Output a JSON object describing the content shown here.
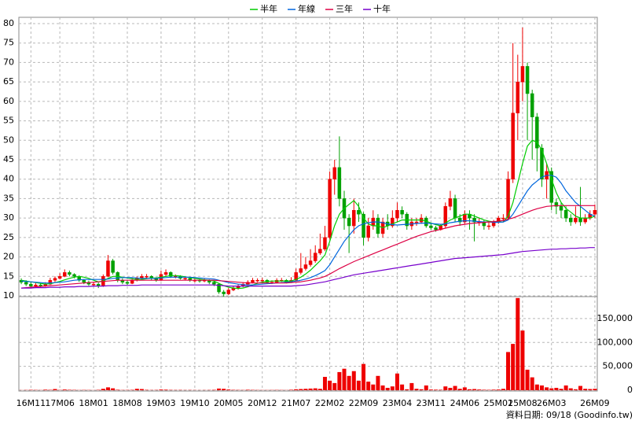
{
  "chart_data": {
    "type": "candlestick",
    "categories": [
      null,
      null,
      "16M11",
      null,
      null,
      null,
      null,
      null,
      "17M06",
      null,
      null,
      null,
      null,
      null,
      null,
      "18M01",
      null,
      null,
      null,
      null,
      null,
      null,
      "18M08",
      null,
      null,
      null,
      null,
      null,
      null,
      "19M03",
      null,
      null,
      null,
      null,
      null,
      null,
      "19M10",
      null,
      null,
      null,
      null,
      null,
      null,
      "20M05",
      null,
      null,
      null,
      null,
      null,
      null,
      "20M12",
      null,
      null,
      null,
      null,
      null,
      null,
      "21M07",
      null,
      null,
      null,
      null,
      null,
      null,
      "22M02",
      null,
      null,
      null,
      null,
      null,
      null,
      "22M09",
      null,
      null,
      null,
      null,
      null,
      null,
      "23M04",
      null,
      null,
      null,
      null,
      null,
      null,
      "23M11",
      null,
      null,
      null,
      null,
      null,
      null,
      "24M06",
      null,
      null,
      null,
      null,
      null,
      null,
      "25M01",
      null,
      null,
      null,
      null,
      "25M08",
      null,
      null,
      null,
      null,
      null,
      "26M03",
      null,
      null,
      null,
      null,
      null,
      null,
      null,
      null,
      "26M09"
    ],
    "open": [
      14,
      13.5,
      13,
      12.5,
      12.8,
      12.6,
      13,
      14,
      14.5,
      15,
      16,
      15.5,
      15,
      14,
      13.5,
      13,
      13,
      12.5,
      15,
      19,
      16,
      14,
      13.5,
      13.2,
      14,
      14.5,
      15,
      15,
      14.5,
      14,
      15.5,
      16,
      15,
      15,
      14.5,
      14.5,
      14,
      14,
      13.8,
      14,
      13.5,
      13,
      11,
      10.5,
      11.5,
      12,
      12.5,
      13,
      13.5,
      14,
      14,
      14,
      13.5,
      13.5,
      14,
      14,
      13.5,
      14,
      16,
      17,
      18,
      19,
      21,
      22,
      25,
      40,
      43,
      35,
      30,
      28,
      32,
      31,
      25,
      28,
      30,
      26,
      29,
      28,
      30,
      32,
      31,
      28,
      29,
      29,
      30,
      28,
      27.5,
      27,
      28,
      33,
      35,
      30,
      29,
      31,
      30,
      29,
      29,
      28,
      28,
      29,
      30,
      30,
      40,
      57,
      65,
      69,
      62,
      56,
      48,
      40,
      42,
      34,
      33,
      32,
      30,
      29,
      30,
      29,
      30,
      31
    ],
    "high": [
      14.5,
      14,
      13.5,
      13.3,
      13.2,
      13.5,
      14.6,
      15,
      15.8,
      16.8,
      16.5,
      15.8,
      15.3,
      14.3,
      13.9,
      13.5,
      13.4,
      15.5,
      20.5,
      19.5,
      16.3,
      14.5,
      14,
      14.6,
      15,
      15.6,
      15.6,
      15.3,
      14.8,
      16.5,
      16.8,
      16.3,
      15.5,
      15.3,
      15,
      14.8,
      14.5,
      14.3,
      14.5,
      14.2,
      13.8,
      13.3,
      11.5,
      12,
      12.5,
      13,
      13.5,
      14,
      14.6,
      14.5,
      14.6,
      14.3,
      14,
      14.5,
      14.6,
      14.3,
      14.8,
      17,
      21,
      20,
      22,
      23,
      26,
      28,
      42,
      45,
      51,
      37,
      31,
      35,
      34,
      31.5,
      30,
      32,
      31,
      30,
      31,
      32,
      34,
      33,
      31.5,
      30,
      30,
      31,
      30.5,
      28.5,
      28,
      28.5,
      34,
      37,
      36,
      31,
      32,
      32,
      31,
      30,
      29.5,
      29,
      29.5,
      30.5,
      31,
      42,
      75,
      72,
      79,
      70,
      63,
      57,
      49,
      44,
      43,
      35,
      34,
      33,
      31,
      33,
      38,
      31,
      32,
      33.5
    ],
    "low": [
      13,
      12.5,
      12,
      12,
      12.2,
      12.3,
      12.8,
      13.6,
      14.2,
      14.8,
      15,
      14.5,
      13.6,
      13,
      12.6,
      12.4,
      12,
      12.3,
      14.8,
      15.5,
      13.5,
      13,
      12.8,
      13,
      13.7,
      14.2,
      14.5,
      14,
      13.6,
      13.8,
      15,
      14.6,
      14.5,
      14.2,
      14,
      13.6,
      13.5,
      13.4,
      13.5,
      13,
      12.5,
      10.5,
      9.8,
      10.2,
      11.2,
      11.6,
      12.2,
      12.7,
      13.2,
      13.5,
      13.5,
      13.2,
      13,
      13.2,
      13.6,
      13.2,
      13.3,
      13.8,
      15.5,
      16.5,
      17.5,
      18.5,
      20.5,
      21.5,
      24.5,
      36,
      33,
      27,
      21,
      26,
      29,
      23,
      24,
      27,
      25,
      25,
      27,
      27.5,
      29,
      30,
      27,
      27,
      28,
      28.5,
      27.5,
      27,
      26.5,
      26.8,
      27.5,
      32,
      29,
      28,
      28.5,
      27,
      24,
      28,
      27,
      27,
      27.5,
      28.5,
      29,
      29.5,
      39,
      50,
      60,
      50,
      45,
      42,
      38,
      35,
      32,
      31,
      30,
      29,
      28,
      28.5,
      28,
      28.5,
      29.5,
      30
    ],
    "close": [
      13.5,
      13,
      12.5,
      12.8,
      12.6,
      13,
      14,
      14.5,
      15,
      16,
      15.5,
      15,
      14,
      13.5,
      13,
      13,
      12.5,
      15,
      19,
      16,
      14,
      13.5,
      13.2,
      14,
      14.5,
      15,
      15,
      14.5,
      14,
      15.5,
      16,
      15,
      15,
      14.5,
      14.5,
      14,
      14,
      13.8,
      14,
      13.5,
      13,
      11,
      10.5,
      11.5,
      12,
      12.5,
      13,
      13.5,
      14,
      14,
      14,
      13.5,
      13.5,
      14,
      14,
      13.5,
      14,
      16,
      17,
      18,
      19,
      21,
      22,
      25,
      40,
      43,
      35,
      30,
      28,
      32,
      31,
      25,
      28,
      30,
      26,
      29,
      28,
      30,
      32,
      31,
      28,
      29,
      29,
      30,
      28,
      27.5,
      27,
      28,
      33,
      35,
      30,
      29,
      31,
      30,
      29,
      29,
      28,
      28,
      29,
      30,
      30,
      40,
      57,
      65,
      69,
      62,
      56,
      48,
      40,
      42,
      34,
      33,
      32,
      30,
      29,
      30,
      29,
      30,
      31,
      32
    ],
    "up_color": "#ee0000",
    "down_color": "#00a000",
    "ylim": [
      10,
      80
    ],
    "yticks": [
      10,
      15,
      20,
      25,
      30,
      35,
      40,
      45,
      50,
      55,
      60,
      65,
      70,
      75,
      80
    ],
    "grid": true,
    "series": [
      {
        "name": "半年",
        "color": "#00cc00",
        "values": [
          14.0,
          13.8,
          13.6,
          13.4,
          13.2,
          13.0,
          13.1,
          13.4,
          13.7,
          14.1,
          14.5,
          14.8,
          15.0,
          14.8,
          14.5,
          14.0,
          13.6,
          13.8,
          14.5,
          15.0,
          15.0,
          14.8,
          14.6,
          14.4,
          14.2,
          14.2,
          14.4,
          14.6,
          14.6,
          14.8,
          15.0,
          15.2,
          15.2,
          15.1,
          14.9,
          14.7,
          14.5,
          14.3,
          14.1,
          14.0,
          13.8,
          13.2,
          12.6,
          12.2,
          12.0,
          11.9,
          12.0,
          12.3,
          12.8,
          13.2,
          13.5,
          13.7,
          13.8,
          13.8,
          13.8,
          13.8,
          13.8,
          14.2,
          14.8,
          15.6,
          16.6,
          17.8,
          19.0,
          20.5,
          24.0,
          28.0,
          31.0,
          32.5,
          33.5,
          34.5,
          33.0,
          30.0,
          28.5,
          28.0,
          28.0,
          27.5,
          28.0,
          28.5,
          29.0,
          29.5,
          29.5,
          29.5,
          29.5,
          29.5,
          29.2,
          28.7,
          28.3,
          28.0,
          28.7,
          29.5,
          30.0,
          30.5,
          31.0,
          31.0,
          30.5,
          30.0,
          29.5,
          29.2,
          29.0,
          29.0,
          29.0,
          30.5,
          34.0,
          39.0,
          44.0,
          48.5,
          50.0,
          49.5,
          47.5,
          44.0,
          40.0,
          36.5,
          34.0,
          32.5,
          31.5,
          30.5,
          30.0,
          30.0,
          30.0,
          30.5
        ]
      },
      {
        "name": "年線",
        "color": "#0066dd",
        "values": [
          13.8,
          13.7,
          13.6,
          13.5,
          13.4,
          13.3,
          13.3,
          13.4,
          13.5,
          13.6,
          13.8,
          14.0,
          14.1,
          14.2,
          14.2,
          14.2,
          14.2,
          14.2,
          14.3,
          14.5,
          14.6,
          14.7,
          14.7,
          14.7,
          14.6,
          14.5,
          14.5,
          14.5,
          14.5,
          14.6,
          14.7,
          14.8,
          14.8,
          14.8,
          14.8,
          14.8,
          14.7,
          14.6,
          14.5,
          14.4,
          14.3,
          14.0,
          13.7,
          13.4,
          13.2,
          13.0,
          12.9,
          12.8,
          12.8,
          12.9,
          13.0,
          13.1,
          13.2,
          13.3,
          13.4,
          13.5,
          13.6,
          13.8,
          14.0,
          14.3,
          14.7,
          15.2,
          15.8,
          16.5,
          18.0,
          20.0,
          22.0,
          24.0,
          25.5,
          27.0,
          28.0,
          28.5,
          28.8,
          29.0,
          29.0,
          28.8,
          28.5,
          28.3,
          28.2,
          28.3,
          28.4,
          28.5,
          28.6,
          28.7,
          28.7,
          28.6,
          28.5,
          28.4,
          28.5,
          28.8,
          29.0,
          29.2,
          29.3,
          29.3,
          29.2,
          29.1,
          29.0,
          29.0,
          28.9,
          28.9,
          29.0,
          29.5,
          31.0,
          33.0,
          35.0,
          37.0,
          38.5,
          39.5,
          40.5,
          41.0,
          41.0,
          40.5,
          39.0,
          37.0,
          35.5,
          34.0,
          33.0,
          32.0,
          31.0,
          30.5
        ]
      },
      {
        "name": "三年",
        "color": "#dd0044",
        "values": [
          12.0,
          12.1,
          12.2,
          12.3,
          12.4,
          12.5,
          12.6,
          12.7,
          12.8,
          12.9,
          13.0,
          13.1,
          13.2,
          13.3,
          13.4,
          13.5,
          13.6,
          13.7,
          13.8,
          13.9,
          14.0,
          14.0,
          14.0,
          14.0,
          14.0,
          14.0,
          14.0,
          14.0,
          14.0,
          14.0,
          14.0,
          14.0,
          14.0,
          14.0,
          14.0,
          14.0,
          14.0,
          14.0,
          14.0,
          14.0,
          14.0,
          13.9,
          13.8,
          13.7,
          13.6,
          13.5,
          13.4,
          13.3,
          13.3,
          13.3,
          13.3,
          13.3,
          13.3,
          13.3,
          13.3,
          13.3,
          13.4,
          13.5,
          13.6,
          13.8,
          14.0,
          14.3,
          14.6,
          15.0,
          15.6,
          16.3,
          17.0,
          17.6,
          18.2,
          18.8,
          19.3,
          19.8,
          20.3,
          20.8,
          21.3,
          21.8,
          22.3,
          22.8,
          23.3,
          23.8,
          24.3,
          24.8,
          25.3,
          25.7,
          26.1,
          26.5,
          26.8,
          27.1,
          27.4,
          27.7,
          28.0,
          28.2,
          28.4,
          28.6,
          28.7,
          28.8,
          28.9,
          29.0,
          29.1,
          29.2,
          29.4,
          29.7,
          30.0,
          30.5,
          31.0,
          31.5,
          32.0,
          32.4,
          32.7,
          33.0,
          33.1,
          33.2,
          33.2,
          33.2,
          33.2,
          33.2,
          33.2,
          33.2,
          33.2,
          33.2
        ]
      },
      {
        "name": "十年",
        "color": "#7700cc",
        "values": [
          12.0,
          12.0,
          12.0,
          12.1,
          12.1,
          12.1,
          12.2,
          12.2,
          12.2,
          12.3,
          12.3,
          12.3,
          12.4,
          12.4,
          12.4,
          12.5,
          12.5,
          12.5,
          12.6,
          12.6,
          12.6,
          12.7,
          12.7,
          12.7,
          12.7,
          12.8,
          12.8,
          12.8,
          12.8,
          12.8,
          12.8,
          12.8,
          12.8,
          12.8,
          12.8,
          12.8,
          12.8,
          12.8,
          12.8,
          12.8,
          12.8,
          12.7,
          12.6,
          12.5,
          12.5,
          12.5,
          12.5,
          12.5,
          12.5,
          12.5,
          12.5,
          12.5,
          12.5,
          12.5,
          12.5,
          12.5,
          12.5,
          12.6,
          12.7,
          12.8,
          13.0,
          13.2,
          13.4,
          13.6,
          13.9,
          14.2,
          14.5,
          14.8,
          15.1,
          15.4,
          15.6,
          15.8,
          16.0,
          16.2,
          16.4,
          16.6,
          16.8,
          17.0,
          17.2,
          17.4,
          17.6,
          17.8,
          18.0,
          18.2,
          18.4,
          18.6,
          18.8,
          19.0,
          19.2,
          19.4,
          19.6,
          19.7,
          19.8,
          19.9,
          20.0,
          20.1,
          20.2,
          20.3,
          20.4,
          20.5,
          20.6,
          20.8,
          21.0,
          21.2,
          21.4,
          21.5,
          21.6,
          21.7,
          21.8,
          21.9,
          22.0,
          22.0,
          22.1,
          22.1,
          22.2,
          22.2,
          22.3,
          22.3,
          22.4,
          22.4
        ]
      }
    ],
    "volume": {
      "color": "#ee0000",
      "ylim": [
        0,
        196000
      ],
      "yticks": [
        0,
        {
          "value": 50000,
          "label": "50,000"
        },
        {
          "value": 100000,
          "label": "100,000"
        },
        {
          "value": 150000,
          "label": "150,000"
        }
      ],
      "values": [
        300,
        500,
        800,
        600,
        400,
        1200,
        800,
        2500,
        600,
        1500,
        900,
        700,
        400,
        600,
        500,
        300,
        800,
        3000,
        6000,
        4000,
        1000,
        500,
        600,
        800,
        3000,
        2500,
        800,
        500,
        600,
        1500,
        1200,
        700,
        500,
        600,
        400,
        500,
        400,
        300,
        400,
        500,
        800,
        3500,
        3000,
        1500,
        800,
        600,
        500,
        1000,
        700,
        500,
        400,
        400,
        500,
        600,
        500,
        400,
        1000,
        2000,
        2500,
        3000,
        3500,
        4000,
        3000,
        28000,
        20000,
        15000,
        38000,
        45000,
        30000,
        40000,
        20000,
        55000,
        18000,
        12000,
        30000,
        10000,
        5000,
        8000,
        35000,
        12000,
        2000,
        15000,
        3000,
        2000,
        10000,
        1500,
        1200,
        1000,
        8000,
        5000,
        9000,
        3000,
        6000,
        2000,
        2500,
        1500,
        1000,
        800,
        1200,
        1500,
        3000,
        80000,
        97000,
        193000,
        125000,
        43000,
        27000,
        12000,
        10000,
        6000,
        4000,
        5000,
        3000,
        10000,
        4000,
        2000,
        9000,
        3000,
        2500,
        3000
      ]
    },
    "source": "資料日期: 09/18 (Goodinfo.tw)"
  }
}
